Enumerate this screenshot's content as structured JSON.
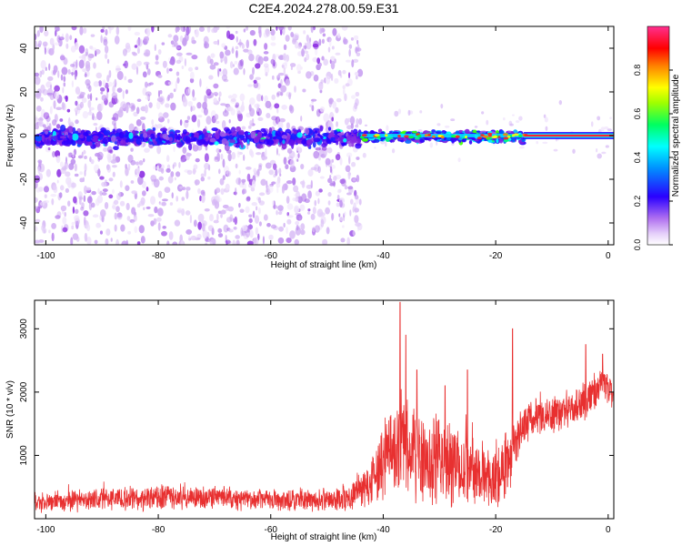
{
  "title": "C2E4.2024.278.00.59.E31",
  "chart_data": [
    {
      "type": "heatmap",
      "xlabel": "Height of straight line (km)",
      "ylabel": "Frequency (Hz)",
      "xlim": [
        -102,
        1
      ],
      "ylim": [
        -50,
        50
      ],
      "xticks": [
        -100,
        -80,
        -60,
        -40,
        -20,
        0
      ],
      "yticks": [
        -40,
        -20,
        0,
        20,
        40
      ],
      "colorbar": {
        "label": "Normalized spectral amplitude",
        "range": [
          0,
          1
        ],
        "ticks": [
          0.0,
          0.2,
          0.4,
          0.6,
          0.8
        ],
        "tick_labels": [
          "0.0",
          "0.2",
          "0.4",
          "0.6",
          "0.8"
        ],
        "colors": [
          "#ffffff",
          "#d9b8f5",
          "#8a2be2",
          "#2a00ff",
          "#00ffff",
          "#00ff00",
          "#ffff00",
          "#ff8000",
          "#ff0000",
          "#ff3090"
        ]
      },
      "description_points": {
        "noise_region_x": [
          -102,
          -44
        ],
        "core_band_center_hz": 0,
        "strong_line_from_km": -15
      }
    },
    {
      "type": "line",
      "xlabel": "Height of straight line (km)",
      "ylabel": "SNR (10 * v/v)",
      "xlim": [
        -102,
        1
      ],
      "ylim": [
        0,
        3450
      ],
      "xticks": [
        -100,
        -80,
        -60,
        -40,
        -20,
        0
      ],
      "yticks": [
        1000,
        2000,
        3000
      ],
      "color": "#e83030",
      "envelope": {
        "x": [
          -102,
          -90,
          -80,
          -70,
          -60,
          -50,
          -46,
          -43,
          -41,
          -39,
          -37,
          -35,
          -32,
          -28,
          -25,
          -22,
          -20,
          -18,
          -16,
          -14,
          -10,
          -6,
          -4,
          -2,
          0,
          1
        ],
        "mean": [
          260,
          300,
          330,
          320,
          290,
          300,
          350,
          520,
          750,
          1050,
          1200,
          1050,
          900,
          820,
          760,
          700,
          600,
          900,
          1300,
          1550,
          1650,
          1750,
          1850,
          2050,
          2100,
          1950
        ],
        "spread": [
          180,
          200,
          220,
          210,
          190,
          200,
          240,
          400,
          650,
          900,
          1000,
          900,
          850,
          800,
          650,
          600,
          520,
          700,
          450,
          350,
          320,
          330,
          350,
          320,
          300,
          300
        ]
      },
      "spikes": [
        [
          -37,
          3420
        ],
        [
          -36,
          2900
        ],
        [
          -34,
          2350
        ],
        [
          -29,
          2100
        ],
        [
          -25,
          2350
        ],
        [
          -17,
          3000
        ],
        [
          -4,
          2750
        ],
        [
          -1,
          2600
        ]
      ]
    }
  ]
}
